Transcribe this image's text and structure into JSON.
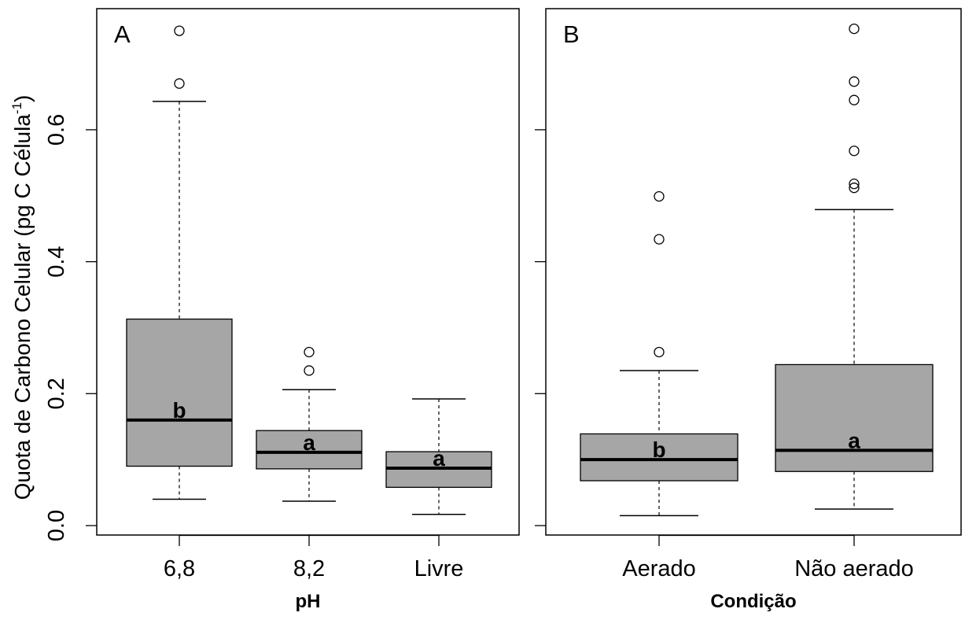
{
  "ylabel": "Quota de Carbono Celular (pg C Célula",
  "ylabel_sup": "-1",
  "ylabel_close": ")",
  "colors": {
    "box_fill": "#a6a6a6",
    "stroke": "#000000",
    "background": "#ffffff"
  },
  "chart_data": [
    {
      "type": "box",
      "panel_label": "A",
      "xlabel": "pH",
      "ylim": [
        0,
        0.76
      ],
      "yticks": [
        0.0,
        0.2,
        0.4,
        0.6
      ],
      "ytick_labels": [
        "0.0",
        "0.2",
        "0.4",
        "0.6"
      ],
      "categories": [
        "6,8",
        "8,2",
        "Livre"
      ],
      "boxes": [
        {
          "category": "6,8",
          "whisker_low": 0.04,
          "q1": 0.09,
          "median": 0.16,
          "q3": 0.313,
          "whisker_high": 0.643,
          "outliers": [
            0.67,
            0.75
          ],
          "group": "b"
        },
        {
          "category": "8,2",
          "whisker_low": 0.037,
          "q1": 0.086,
          "median": 0.111,
          "q3": 0.144,
          "whisker_high": 0.206,
          "outliers": [
            0.235,
            0.263
          ],
          "group": "a"
        },
        {
          "category": "Livre",
          "whisker_low": 0.017,
          "q1": 0.058,
          "median": 0.087,
          "q3": 0.112,
          "whisker_high": 0.192,
          "outliers": [],
          "group": "a"
        }
      ]
    },
    {
      "type": "box",
      "panel_label": "B",
      "xlabel": "Condição",
      "ylim": [
        0,
        0.76
      ],
      "yticks": [
        0.0,
        0.2,
        0.4,
        0.6
      ],
      "categories": [
        "Aerado",
        "Não aerado"
      ],
      "boxes": [
        {
          "category": "Aerado",
          "whisker_low": 0.015,
          "q1": 0.068,
          "median": 0.1,
          "q3": 0.139,
          "whisker_high": 0.235,
          "outliers": [
            0.263,
            0.434,
            0.499
          ],
          "group": "b"
        },
        {
          "category": "Não aerado",
          "whisker_low": 0.025,
          "q1": 0.082,
          "median": 0.114,
          "q3": 0.244,
          "whisker_high": 0.479,
          "outliers": [
            0.512,
            0.518,
            0.568,
            0.645,
            0.673,
            0.753
          ],
          "group": "a"
        }
      ]
    }
  ]
}
